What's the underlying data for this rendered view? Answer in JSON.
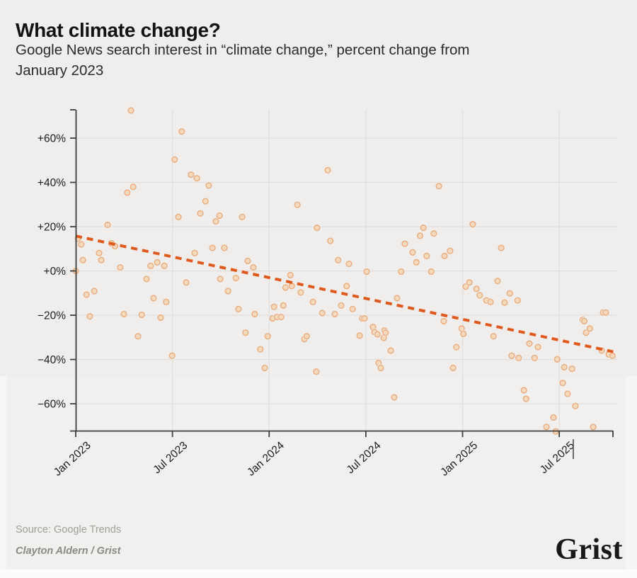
{
  "header": {
    "title": "What climate change?",
    "subtitle_lines": [
      "Google News search interest in “climate change,” percent change from",
      "January 2023"
    ]
  },
  "chart_data": {
    "type": "scatter",
    "title": "What climate change?",
    "subtitle": "Google News search interest in “climate change,” percent change from January 2023",
    "xlabel": "",
    "ylabel": "percent change from January 2023",
    "x_unit": "weeks since January 2023",
    "grid": true,
    "legend": "none",
    "xlim_weeks": [
      0,
      145
    ],
    "ylim": [
      -73,
      74
    ],
    "x_ticks": [
      {
        "label": "Jan 2023",
        "week": 0
      },
      {
        "label": "Jul 2023",
        "week": 26.09
      },
      {
        "label": "Jan 2024",
        "week": 52.18
      },
      {
        "label": "Jul 2024",
        "week": 78.27
      },
      {
        "label": "Jan 2025",
        "week": 104.36
      },
      {
        "label": "Jul 2025",
        "week": 130.45
      }
    ],
    "y_ticks": [
      {
        "label": "+60%",
        "value": 60
      },
      {
        "label": "+40%",
        "value": 40
      },
      {
        "label": "+20%",
        "value": 20
      },
      {
        "label": "+0%",
        "value": 0
      },
      {
        "label": "−20%",
        "value": -20
      },
      {
        "label": "−40%",
        "value": -40
      },
      {
        "label": "−60%",
        "value": -60
      }
    ],
    "points": [
      [
        0,
        0
      ],
      [
        0.6,
        14.6
      ],
      [
        1.5,
        12
      ],
      [
        1.9,
        4.9
      ],
      [
        2.9,
        -10.7
      ],
      [
        3.8,
        -20.5
      ],
      [
        5,
        -9.1
      ],
      [
        6.3,
        8.1
      ],
      [
        6.9,
        4.9
      ],
      [
        8.6,
        20.8
      ],
      [
        9.6,
        12.5
      ],
      [
        10.6,
        11.2
      ],
      [
        12,
        1.6
      ],
      [
        13,
        -19.5
      ],
      [
        13.9,
        35.4
      ],
      [
        14.9,
        72.5
      ],
      [
        15.5,
        38
      ],
      [
        16.8,
        -29.5
      ],
      [
        17.8,
        -19.8
      ],
      [
        19.1,
        -3.6
      ],
      [
        20.2,
        2.3
      ],
      [
        21,
        -12.3
      ],
      [
        22,
        3.9
      ],
      [
        22.9,
        -21.1
      ],
      [
        23.9,
        2.3
      ],
      [
        24.4,
        -14
      ],
      [
        26,
        -38.3
      ],
      [
        26.7,
        50.3
      ],
      [
        27.7,
        24.4
      ],
      [
        28.6,
        63
      ],
      [
        29.8,
        -5.2
      ],
      [
        31.1,
        43.5
      ],
      [
        32.1,
        8.1
      ],
      [
        32.7,
        41.9
      ],
      [
        33.6,
        26
      ],
      [
        35,
        31.5
      ],
      [
        35.9,
        38.6
      ],
      [
        36.9,
        10.4
      ],
      [
        37.8,
        22.4
      ],
      [
        38.8,
        25
      ],
      [
        39,
        -3.6
      ],
      [
        40.1,
        10.4
      ],
      [
        41.1,
        -9.1
      ],
      [
        43.2,
        -3.2
      ],
      [
        43.9,
        -17.2
      ],
      [
        44.9,
        24.4
      ],
      [
        45.8,
        -27.9
      ],
      [
        46.4,
        4.5
      ],
      [
        47.9,
        1.6
      ],
      [
        48.3,
        -19.5
      ],
      [
        49.8,
        -35.4
      ],
      [
        51,
        -43.8
      ],
      [
        51.8,
        -29.5
      ],
      [
        53.1,
        -21.4
      ],
      [
        53.5,
        -16.2
      ],
      [
        54.3,
        -20.8
      ],
      [
        55.4,
        -20.8
      ],
      [
        56,
        -15.6
      ],
      [
        56.6,
        -7.5
      ],
      [
        57.9,
        -1.9
      ],
      [
        58.3,
        -6.8
      ],
      [
        59.8,
        29.9
      ],
      [
        60.7,
        -9.7
      ],
      [
        61.7,
        -30.8
      ],
      [
        62.3,
        -29.5
      ],
      [
        64,
        -14
      ],
      [
        64.9,
        -45.5
      ],
      [
        65.1,
        19.5
      ],
      [
        66.5,
        -19
      ],
      [
        68,
        45.5
      ],
      [
        68.7,
        13.6
      ],
      [
        69.9,
        -19.5
      ],
      [
        70.8,
        4.9
      ],
      [
        71.6,
        -15.6
      ],
      [
        73.1,
        -6.8
      ],
      [
        73.7,
        3.2
      ],
      [
        74.7,
        -17.2
      ],
      [
        76.6,
        -29.2
      ],
      [
        77.3,
        -21.4
      ],
      [
        77.9,
        -21.4
      ],
      [
        78.5,
        -0.3
      ],
      [
        80.2,
        -25.3
      ],
      [
        80.6,
        -27.6
      ],
      [
        81.4,
        -28.6
      ],
      [
        81.7,
        -41.6
      ],
      [
        82.3,
        -43.8
      ],
      [
        83.1,
        -30.2
      ],
      [
        83.3,
        -26.9
      ],
      [
        83.6,
        -27.9
      ],
      [
        85,
        -36
      ],
      [
        85.9,
        -57.1
      ],
      [
        86.7,
        -12.3
      ],
      [
        87.8,
        -0.3
      ],
      [
        88.8,
        12.3
      ],
      [
        90.9,
        8.4
      ],
      [
        91.9,
        3.9
      ],
      [
        92.9,
        15.9
      ],
      [
        93.8,
        19.5
      ],
      [
        94.7,
        6.8
      ],
      [
        95.9,
        -0.3
      ],
      [
        96.6,
        16.9
      ],
      [
        98,
        38.3
      ],
      [
        99.3,
        -22.7
      ],
      [
        99.5,
        6.8
      ],
      [
        101,
        9.1
      ],
      [
        101.8,
        -43.8
      ],
      [
        102.7,
        -34.4
      ],
      [
        104.1,
        -26
      ],
      [
        104.6,
        -28.4
      ],
      [
        105.2,
        -7.1
      ],
      [
        106.2,
        -5.2
      ],
      [
        107.1,
        21.1
      ],
      [
        108.1,
        -8.1
      ],
      [
        109,
        -11
      ],
      [
        110.8,
        -13.3
      ],
      [
        111.9,
        -14
      ],
      [
        112.7,
        -29.5
      ],
      [
        113.8,
        -4.5
      ],
      [
        114.8,
        10.4
      ],
      [
        115.7,
        -14.3
      ],
      [
        117.1,
        -10.1
      ],
      [
        117.6,
        -38.3
      ],
      [
        119.2,
        -13.3
      ],
      [
        119.5,
        -39.3
      ],
      [
        120.9,
        -53.9
      ],
      [
        121.5,
        -57.8
      ],
      [
        122.4,
        -32.8
      ],
      [
        123.8,
        -39.3
      ],
      [
        124.7,
        -34.4
      ],
      [
        127,
        -70.5
      ],
      [
        128.9,
        -66.2
      ],
      [
        129.5,
        -72.5
      ],
      [
        129.9,
        -39.9
      ],
      [
        131.4,
        -50.6
      ],
      [
        131.8,
        -43.5
      ],
      [
        132.7,
        -55.5
      ],
      [
        133.9,
        -44.2
      ],
      [
        134.8,
        -61
      ],
      [
        136.8,
        -22.1
      ],
      [
        137.2,
        -22.7
      ],
      [
        137.7,
        -27.9
      ],
      [
        138.7,
        -26
      ],
      [
        139.6,
        -70.5
      ],
      [
        141.9,
        -36
      ],
      [
        142.3,
        -18.8
      ],
      [
        143,
        -18.8
      ],
      [
        143.8,
        -37.7
      ],
      [
        144.8,
        -38.3
      ]
    ],
    "trend": {
      "style": "dashed",
      "start_week": 0,
      "start_pct": 15.8,
      "end_week": 145,
      "end_pct": -36.5
    },
    "colors": {
      "point_fill": "#f6d3b2",
      "point_stroke": "#e39b66",
      "point_halo": "#f4f3f1",
      "trend": "#e0591c",
      "grid": "#e0dfdd",
      "axis": "#3f3f3f",
      "tick_label": "#1d1d1d",
      "background": "#f1f0ee"
    }
  },
  "footer": {
    "source": "Source: Google Trends",
    "byline": "Clayton Aldern / Grist",
    "logo": "Grist"
  }
}
